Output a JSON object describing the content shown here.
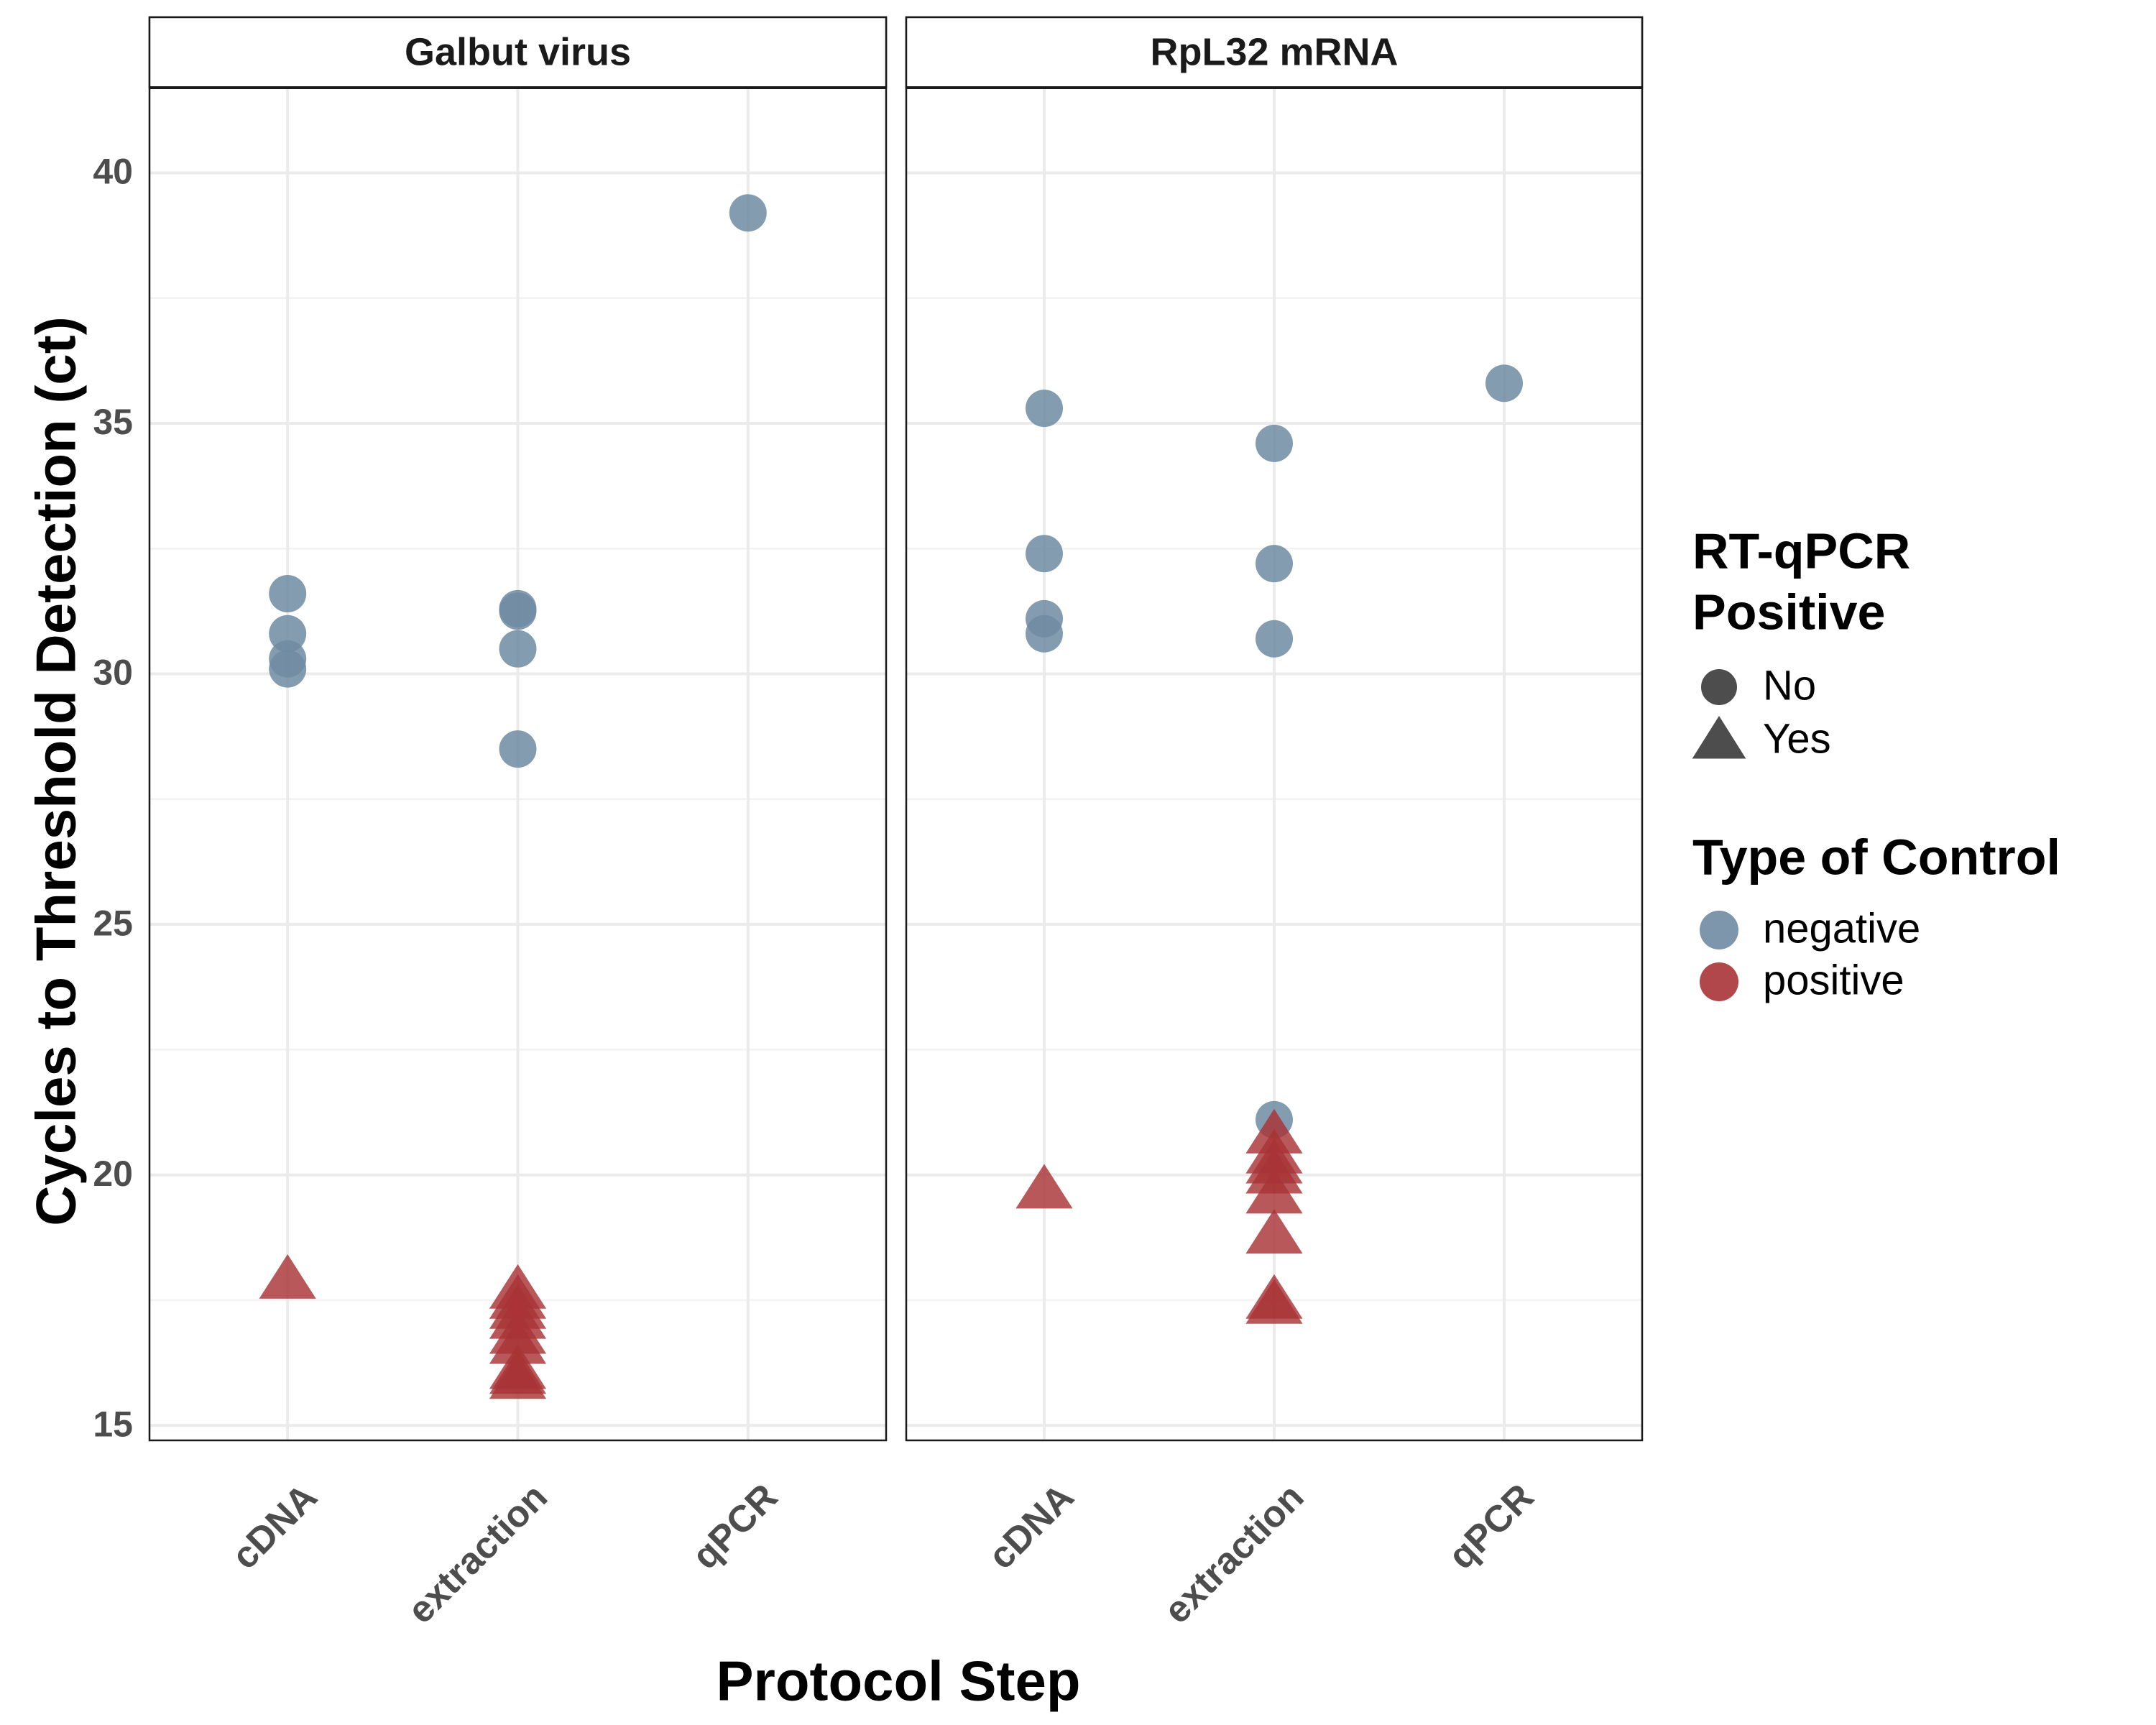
{
  "chart_data": {
    "type": "scatter",
    "xlabel": "Protocol Step",
    "ylabel": "Cycles to Threshold Detection (ct)",
    "categories": [
      "cDNA",
      "extraction",
      "qPCR"
    ],
    "ylim": [
      14.7,
      41.7
    ],
    "yticks": [
      15,
      20,
      25,
      30,
      35,
      40
    ],
    "grid": true,
    "legend_position": "right",
    "colors": {
      "negative": "#6f8ba2",
      "positive": "#a83336",
      "positive_dense": "#8b0f12"
    },
    "legend": {
      "shape_title_line1": "RT-qPCR",
      "shape_title_line2": "Positive",
      "shape_items": [
        {
          "label": "No",
          "shape": "circle"
        },
        {
          "label": "Yes",
          "shape": "triangle"
        }
      ],
      "color_title": "Type of Control",
      "color_items": [
        {
          "label": "negative",
          "color": "#6f8ba2"
        },
        {
          "label": "positive",
          "color": "#a83336"
        }
      ]
    },
    "panels": [
      {
        "title": "Galbut virus",
        "points": [
          {
            "x": "cDNA",
            "y": 31.6,
            "control": "negative",
            "rt_qpcr_positive": "No"
          },
          {
            "x": "cDNA",
            "y": 30.8,
            "control": "negative",
            "rt_qpcr_positive": "No"
          },
          {
            "x": "cDNA",
            "y": 30.3,
            "control": "negative",
            "rt_qpcr_positive": "No"
          },
          {
            "x": "cDNA",
            "y": 30.1,
            "control": "negative",
            "rt_qpcr_positive": "No"
          },
          {
            "x": "cDNA",
            "y": 17.9,
            "control": "positive",
            "rt_qpcr_positive": "Yes"
          },
          {
            "x": "extraction",
            "y": 31.3,
            "control": "negative",
            "rt_qpcr_positive": "No"
          },
          {
            "x": "extraction",
            "y": 31.25,
            "control": "negative",
            "rt_qpcr_positive": "No"
          },
          {
            "x": "extraction",
            "y": 30.5,
            "control": "negative",
            "rt_qpcr_positive": "No"
          },
          {
            "x": "extraction",
            "y": 28.5,
            "control": "negative",
            "rt_qpcr_positive": "No"
          },
          {
            "x": "extraction",
            "y": 17.7,
            "control": "positive",
            "rt_qpcr_positive": "Yes"
          },
          {
            "x": "extraction",
            "y": 17.5,
            "control": "positive",
            "rt_qpcr_positive": "Yes"
          },
          {
            "x": "extraction",
            "y": 17.3,
            "control": "positive",
            "rt_qpcr_positive": "Yes"
          },
          {
            "x": "extraction",
            "y": 17.1,
            "control": "positive",
            "rt_qpcr_positive": "Yes"
          },
          {
            "x": "extraction",
            "y": 16.8,
            "control": "positive",
            "rt_qpcr_positive": "Yes"
          },
          {
            "x": "extraction",
            "y": 16.6,
            "control": "positive",
            "rt_qpcr_positive": "Yes"
          },
          {
            "x": "extraction",
            "y": 16.1,
            "control": "positive",
            "rt_qpcr_positive": "Yes"
          },
          {
            "x": "extraction",
            "y": 16.0,
            "control": "positive",
            "rt_qpcr_positive": "Yes"
          },
          {
            "x": "extraction",
            "y": 15.9,
            "control": "positive",
            "rt_qpcr_positive": "Yes"
          },
          {
            "x": "qPCR",
            "y": 39.2,
            "control": "negative",
            "rt_qpcr_positive": "No"
          }
        ]
      },
      {
        "title": "RpL32 mRNA",
        "points": [
          {
            "x": "cDNA",
            "y": 35.3,
            "control": "negative",
            "rt_qpcr_positive": "No"
          },
          {
            "x": "cDNA",
            "y": 32.4,
            "control": "negative",
            "rt_qpcr_positive": "No"
          },
          {
            "x": "cDNA",
            "y": 31.1,
            "control": "negative",
            "rt_qpcr_positive": "No"
          },
          {
            "x": "cDNA",
            "y": 30.8,
            "control": "negative",
            "rt_qpcr_positive": "No"
          },
          {
            "x": "cDNA",
            "y": 19.7,
            "control": "positive",
            "rt_qpcr_positive": "Yes"
          },
          {
            "x": "extraction",
            "y": 34.6,
            "control": "negative",
            "rt_qpcr_positive": "No"
          },
          {
            "x": "extraction",
            "y": 32.2,
            "control": "negative",
            "rt_qpcr_positive": "No"
          },
          {
            "x": "extraction",
            "y": 30.7,
            "control": "negative",
            "rt_qpcr_positive": "No"
          },
          {
            "x": "extraction",
            "y": 21.1,
            "control": "negative",
            "rt_qpcr_positive": "No"
          },
          {
            "x": "extraction",
            "y": 20.8,
            "control": "positive",
            "rt_qpcr_positive": "Yes"
          },
          {
            "x": "extraction",
            "y": 20.4,
            "control": "positive",
            "rt_qpcr_positive": "Yes"
          },
          {
            "x": "extraction",
            "y": 20.2,
            "control": "positive",
            "rt_qpcr_positive": "Yes"
          },
          {
            "x": "extraction",
            "y": 20.0,
            "control": "positive",
            "rt_qpcr_positive": "Yes"
          },
          {
            "x": "extraction",
            "y": 19.6,
            "control": "positive",
            "rt_qpcr_positive": "Yes"
          },
          {
            "x": "extraction",
            "y": 18.8,
            "control": "positive",
            "rt_qpcr_positive": "Yes"
          },
          {
            "x": "extraction",
            "y": 17.5,
            "control": "positive",
            "rt_qpcr_positive": "Yes"
          },
          {
            "x": "extraction",
            "y": 17.4,
            "control": "positive",
            "rt_qpcr_positive": "Yes"
          },
          {
            "x": "qPCR",
            "y": 35.8,
            "control": "negative",
            "rt_qpcr_positive": "No"
          }
        ]
      }
    ]
  }
}
